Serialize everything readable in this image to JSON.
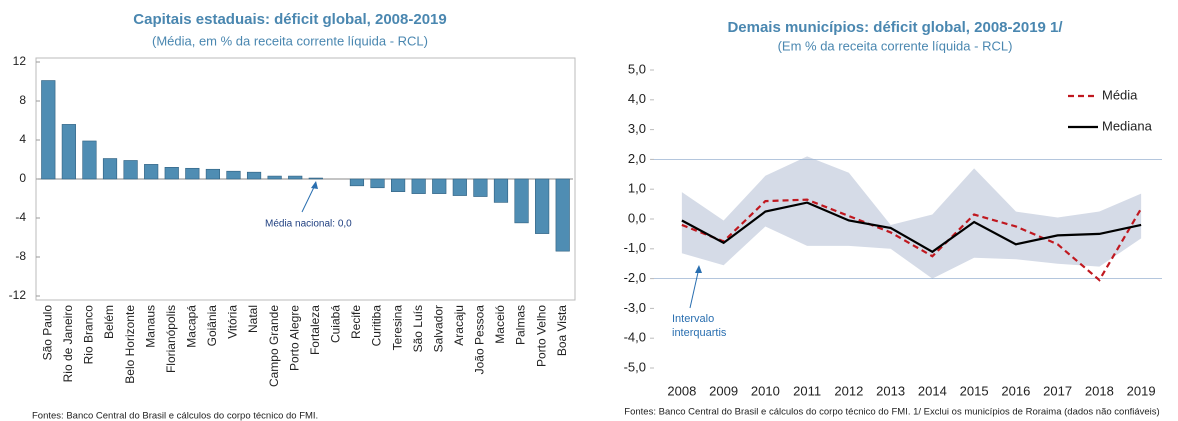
{
  "chart_data": [
    {
      "type": "bar",
      "title": "Capitais estaduais: déficit global, 2008-2019",
      "subtitle": "(Média, em % da receita corrente líquida - RCL)",
      "categories": [
        "São Paulo",
        "Rio de Janeiro",
        "Rio Branco",
        "Belém",
        "Belo Horizonte",
        "Manaus",
        "Florianópolis",
        "Macapá",
        "Goiânia",
        "Vitória",
        "Natal",
        "Campo Grande",
        "Porto Alegre",
        "Fortaleza",
        "Cuiabá",
        "Recife",
        "Curitiba",
        "Teresina",
        "São Luís",
        "Salvador",
        "Aracaju",
        "João Pessoa",
        "Maceió",
        "Palmas",
        "Porto Velho",
        "Boa Vista"
      ],
      "values": [
        10.1,
        5.6,
        3.9,
        2.1,
        1.9,
        1.5,
        1.2,
        1.1,
        1.0,
        0.8,
        0.7,
        0.3,
        0.3,
        0.1,
        0.0,
        -0.7,
        -0.9,
        -1.3,
        -1.5,
        -1.5,
        -1.7,
        -1.8,
        -2.4,
        -4.5,
        -5.6,
        -7.4
      ],
      "color": "#4f8db3",
      "ylim": [
        -12,
        12
      ],
      "yticks": [
        12,
        8,
        4,
        0,
        -4,
        -8,
        -12
      ],
      "annotation": "Média nacional: 0,0",
      "source": "Fontes: Banco Central do Brasil e cálculos do corpo técnico do FMI."
    },
    {
      "type": "line",
      "title": "Demais municípios: déficit global, 2008-2019 1/",
      "subtitle": "(Em % da receita corrente líquida - RCL)",
      "categories": [
        "2008",
        "2009",
        "2010",
        "2011",
        "2012",
        "2013",
        "2014",
        "2015",
        "2016",
        "2017",
        "2018",
        "2019"
      ],
      "series": [
        {
          "name": "Média",
          "color": "#c0181f",
          "dashed": true,
          "values": [
            -0.2,
            -0.75,
            0.6,
            0.65,
            0.1,
            -0.45,
            -1.25,
            0.15,
            -0.25,
            -0.85,
            -2.05,
            0.35
          ]
        },
        {
          "name": "Mediana",
          "color": "#000000",
          "dashed": false,
          "values": [
            -0.05,
            -0.8,
            0.25,
            0.55,
            -0.05,
            -0.3,
            -1.1,
            -0.1,
            -0.85,
            -0.55,
            -0.5,
            -0.2
          ]
        }
      ],
      "band": {
        "name": "Intervalo interquartis",
        "color": "#d5dbe7",
        "upper": [
          0.9,
          -0.05,
          1.45,
          2.1,
          1.55,
          -0.2,
          0.15,
          1.7,
          0.25,
          0.05,
          0.25,
          0.85
        ],
        "lower": [
          -1.15,
          -1.55,
          -0.25,
          -0.9,
          -0.9,
          -1.0,
          -2.0,
          -1.3,
          -1.35,
          -1.5,
          -1.6,
          -0.65
        ]
      },
      "ylim": [
        -5,
        5
      ],
      "yticks": [
        {
          "value": 5,
          "label": "5,0"
        },
        {
          "value": 4,
          "label": "4,0"
        },
        {
          "value": 3,
          "label": "3,0"
        },
        {
          "value": 2,
          "label": "2,0"
        },
        {
          "value": 1,
          "label": "1,0"
        },
        {
          "value": 0,
          "label": "0,0"
        },
        {
          "value": -1,
          "label": "-1,0"
        },
        {
          "value": -2,
          "label": "-2,0"
        },
        {
          "value": -3,
          "label": "-3,0"
        },
        {
          "value": -4,
          "label": "-4,0"
        },
        {
          "value": -5,
          "label": "-5,0"
        }
      ],
      "hlines": [
        2,
        -2
      ],
      "legend": "top-right",
      "source": "Fontes: Banco Central do Brasil e cálculos do corpo técnico do FMI. 1/ Exclui os municípios de Roraima (dados não confiáveis)"
    }
  ]
}
